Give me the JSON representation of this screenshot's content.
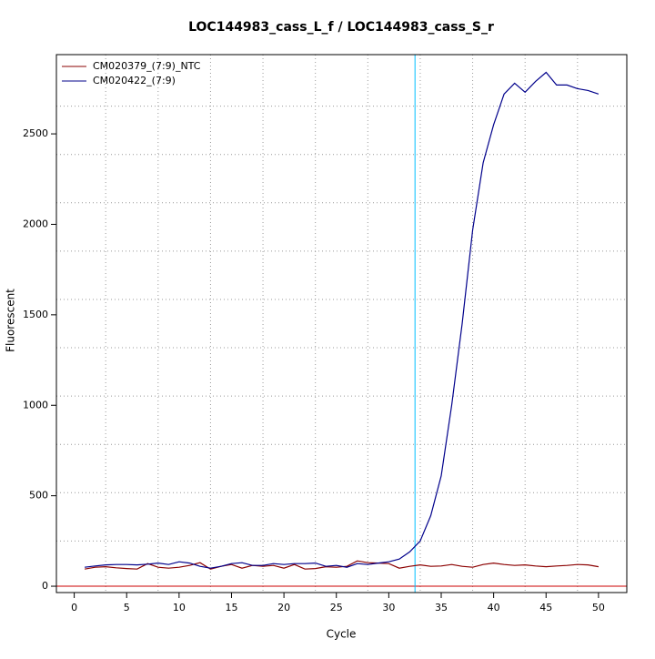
{
  "chart_data": {
    "type": "line",
    "title": "LOC144983_cass_L_f / LOC144983_cass_S_r",
    "xlabel": "Cycle",
    "ylabel": "Fluorescent",
    "x": [
      1,
      2,
      3,
      4,
      5,
      6,
      7,
      8,
      9,
      10,
      11,
      12,
      13,
      14,
      15,
      16,
      17,
      18,
      19,
      20,
      21,
      22,
      23,
      24,
      25,
      26,
      27,
      28,
      29,
      30,
      31,
      32,
      33,
      34,
      35,
      36,
      37,
      38,
      39,
      40,
      41,
      42,
      43,
      44,
      45,
      46,
      47,
      48,
      49,
      50
    ],
    "series": [
      {
        "name": "CM020379_(7:9)_NTC",
        "color": "#8b0000",
        "values": [
          95,
          105,
          108,
          102,
          98,
          95,
          125,
          105,
          100,
          105,
          115,
          130,
          95,
          110,
          120,
          100,
          115,
          110,
          115,
          100,
          120,
          95,
          98,
          108,
          105,
          110,
          140,
          130,
          128,
          125,
          100,
          110,
          118,
          110,
          112,
          120,
          110,
          105,
          120,
          128,
          120,
          115,
          118,
          112,
          108,
          112,
          115,
          120,
          118,
          108
        ]
      },
      {
        "name": "CM020422_(7:9)",
        "color": "#00008b",
        "values": [
          105,
          112,
          118,
          120,
          120,
          118,
          122,
          128,
          120,
          135,
          128,
          110,
          100,
          110,
          125,
          130,
          115,
          115,
          125,
          120,
          125,
          125,
          128,
          110,
          115,
          105,
          125,
          120,
          128,
          135,
          150,
          190,
          250,
          390,
          610,
          1000,
          1450,
          1970,
          2340,
          2550,
          2720,
          2780,
          2730,
          2790,
          2840,
          2770,
          2770,
          2750,
          2740,
          2720
        ]
      }
    ],
    "xlim": [
      -1.7,
      52.7
    ],
    "ylim": [
      -35,
      2938
    ],
    "xticks": [
      0,
      5,
      10,
      15,
      20,
      25,
      30,
      35,
      40,
      45,
      50
    ],
    "yticks": [
      0,
      500,
      1000,
      1500,
      2000,
      2500
    ],
    "xgrid": [
      3,
      8,
      13,
      18,
      23,
      28,
      33,
      38,
      43,
      48
    ],
    "ygrid": [
      250,
      517,
      784,
      1051,
      1318,
      1585,
      1852,
      2119,
      2386,
      2653
    ],
    "vline": 32.5,
    "vline_color": "#00bfff",
    "hline": 0,
    "hline_color": "#cc0000",
    "legend": "top-left"
  }
}
